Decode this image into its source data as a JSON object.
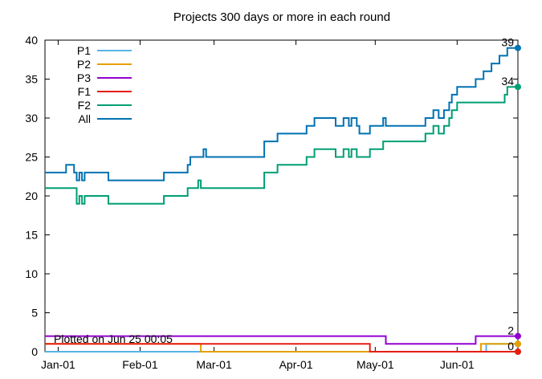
{
  "chart_data": {
    "type": "line",
    "title": "Projects 300 days or more in each round",
    "xlabel": "",
    "ylabel": "",
    "ylim": [
      0,
      40
    ],
    "yticks": [
      0,
      5,
      10,
      15,
      20,
      25,
      30,
      35,
      40
    ],
    "xlim": [
      "2021-12-27",
      "2022-06-24"
    ],
    "xticks": [
      {
        "date": "2022-01-01",
        "label": "Jan-01"
      },
      {
        "date": "2022-02-01",
        "label": "Feb-01"
      },
      {
        "date": "2022-03-01",
        "label": "Mar-01"
      },
      {
        "date": "2022-04-01",
        "label": "Apr-01"
      },
      {
        "date": "2022-05-01",
        "label": "May-01"
      },
      {
        "date": "2022-06-01",
        "label": "Jun-01"
      }
    ],
    "grid": false,
    "legend_position": "top-left",
    "note": "Plotted on Jun 25 00:05",
    "series": [
      {
        "name": "P1",
        "color": "#56b4e9",
        "points": [
          [
            "2021-12-27",
            0
          ],
          [
            "2022-06-12",
            0
          ],
          [
            "2022-06-12",
            1
          ],
          [
            "2022-06-24",
            1
          ]
        ],
        "end_value": 1,
        "end_label": ""
      },
      {
        "name": "P2",
        "color": "#e69f00",
        "points": [
          [
            "2021-12-27",
            1
          ],
          [
            "2022-02-24",
            1
          ],
          [
            "2022-02-24",
            0
          ],
          [
            "2022-06-10",
            0
          ],
          [
            "2022-06-10",
            1
          ],
          [
            "2022-06-24",
            1
          ]
        ],
        "end_value": 1,
        "end_label": ""
      },
      {
        "name": "P3",
        "color": "#9400d3",
        "points": [
          [
            "2021-12-27",
            2
          ],
          [
            "2022-05-05",
            2
          ],
          [
            "2022-05-05",
            1
          ],
          [
            "2022-06-08",
            1
          ],
          [
            "2022-06-08",
            2
          ],
          [
            "2022-06-24",
            2
          ]
        ],
        "end_value": 2,
        "end_label": "2"
      },
      {
        "name": "F1",
        "color": "#e51e10",
        "points": [
          [
            "2021-12-27",
            1
          ],
          [
            "2022-04-29",
            1
          ],
          [
            "2022-04-29",
            0
          ],
          [
            "2022-06-24",
            0
          ]
        ],
        "end_value": 0,
        "end_label": "0"
      },
      {
        "name": "F2",
        "color": "#009e73",
        "points": [
          [
            "2021-12-27",
            21
          ],
          [
            "2022-01-08",
            21
          ],
          [
            "2022-01-08",
            19
          ],
          [
            "2022-01-09",
            19
          ],
          [
            "2022-01-09",
            20
          ],
          [
            "2022-01-10",
            20
          ],
          [
            "2022-01-10",
            19
          ],
          [
            "2022-01-11",
            19
          ],
          [
            "2022-01-11",
            20
          ],
          [
            "2022-01-20",
            20
          ],
          [
            "2022-01-20",
            19
          ],
          [
            "2022-02-10",
            19
          ],
          [
            "2022-02-10",
            20
          ],
          [
            "2022-02-19",
            20
          ],
          [
            "2022-02-19",
            21
          ],
          [
            "2022-02-23",
            21
          ],
          [
            "2022-02-23",
            22
          ],
          [
            "2022-02-24",
            22
          ],
          [
            "2022-02-24",
            21
          ],
          [
            "2022-03-20",
            21
          ],
          [
            "2022-03-20",
            23
          ],
          [
            "2022-03-25",
            23
          ],
          [
            "2022-03-25",
            24
          ],
          [
            "2022-04-05",
            24
          ],
          [
            "2022-04-05",
            25
          ],
          [
            "2022-04-08",
            25
          ],
          [
            "2022-04-08",
            26
          ],
          [
            "2022-04-16",
            26
          ],
          [
            "2022-04-16",
            25
          ],
          [
            "2022-04-19",
            25
          ],
          [
            "2022-04-19",
            26
          ],
          [
            "2022-04-21",
            26
          ],
          [
            "2022-04-21",
            25
          ],
          [
            "2022-04-22",
            25
          ],
          [
            "2022-04-22",
            26
          ],
          [
            "2022-04-24",
            26
          ],
          [
            "2022-04-24",
            25
          ],
          [
            "2022-04-29",
            25
          ],
          [
            "2022-04-29",
            26
          ],
          [
            "2022-05-04",
            26
          ],
          [
            "2022-05-04",
            27
          ],
          [
            "2022-05-20",
            27
          ],
          [
            "2022-05-20",
            28
          ],
          [
            "2022-05-23",
            28
          ],
          [
            "2022-05-23",
            29
          ],
          [
            "2022-05-25",
            29
          ],
          [
            "2022-05-25",
            28
          ],
          [
            "2022-05-27",
            28
          ],
          [
            "2022-05-27",
            29
          ],
          [
            "2022-05-29",
            29
          ],
          [
            "2022-05-29",
            30
          ],
          [
            "2022-05-30",
            30
          ],
          [
            "2022-05-30",
            31
          ],
          [
            "2022-06-01",
            31
          ],
          [
            "2022-06-01",
            32
          ],
          [
            "2022-06-19",
            32
          ],
          [
            "2022-06-19",
            33
          ],
          [
            "2022-06-20",
            33
          ],
          [
            "2022-06-20",
            34
          ],
          [
            "2022-06-24",
            34
          ]
        ],
        "end_value": 34,
        "end_label": "34"
      },
      {
        "name": "All",
        "color": "#0072b2",
        "points": [
          [
            "2021-12-27",
            23
          ],
          [
            "2022-01-04",
            23
          ],
          [
            "2022-01-04",
            24
          ],
          [
            "2022-01-07",
            24
          ],
          [
            "2022-01-07",
            23
          ],
          [
            "2022-01-08",
            23
          ],
          [
            "2022-01-08",
            22
          ],
          [
            "2022-01-09",
            22
          ],
          [
            "2022-01-09",
            23
          ],
          [
            "2022-01-10",
            23
          ],
          [
            "2022-01-10",
            22
          ],
          [
            "2022-01-11",
            22
          ],
          [
            "2022-01-11",
            23
          ],
          [
            "2022-01-20",
            23
          ],
          [
            "2022-01-20",
            22
          ],
          [
            "2022-02-10",
            22
          ],
          [
            "2022-02-10",
            23
          ],
          [
            "2022-02-19",
            23
          ],
          [
            "2022-02-19",
            24
          ],
          [
            "2022-02-20",
            24
          ],
          [
            "2022-02-20",
            25
          ],
          [
            "2022-02-25",
            25
          ],
          [
            "2022-02-25",
            26
          ],
          [
            "2022-02-26",
            26
          ],
          [
            "2022-02-26",
            25
          ],
          [
            "2022-03-20",
            25
          ],
          [
            "2022-03-20",
            27
          ],
          [
            "2022-03-25",
            27
          ],
          [
            "2022-03-25",
            28
          ],
          [
            "2022-04-05",
            28
          ],
          [
            "2022-04-05",
            29
          ],
          [
            "2022-04-08",
            29
          ],
          [
            "2022-04-08",
            30
          ],
          [
            "2022-04-16",
            30
          ],
          [
            "2022-04-16",
            29
          ],
          [
            "2022-04-19",
            29
          ],
          [
            "2022-04-19",
            30
          ],
          [
            "2022-04-21",
            30
          ],
          [
            "2022-04-21",
            29
          ],
          [
            "2022-04-22",
            29
          ],
          [
            "2022-04-22",
            30
          ],
          [
            "2022-04-24",
            30
          ],
          [
            "2022-04-24",
            29
          ],
          [
            "2022-04-25",
            29
          ],
          [
            "2022-04-25",
            28
          ],
          [
            "2022-04-29",
            28
          ],
          [
            "2022-04-29",
            29
          ],
          [
            "2022-05-04",
            29
          ],
          [
            "2022-05-04",
            30
          ],
          [
            "2022-05-05",
            30
          ],
          [
            "2022-05-05",
            29
          ],
          [
            "2022-05-20",
            29
          ],
          [
            "2022-05-20",
            30
          ],
          [
            "2022-05-23",
            30
          ],
          [
            "2022-05-23",
            31
          ],
          [
            "2022-05-25",
            31
          ],
          [
            "2022-05-25",
            30
          ],
          [
            "2022-05-27",
            30
          ],
          [
            "2022-05-27",
            31
          ],
          [
            "2022-05-29",
            31
          ],
          [
            "2022-05-29",
            32
          ],
          [
            "2022-05-30",
            32
          ],
          [
            "2022-05-30",
            33
          ],
          [
            "2022-06-01",
            33
          ],
          [
            "2022-06-01",
            34
          ],
          [
            "2022-06-08",
            34
          ],
          [
            "2022-06-08",
            35
          ],
          [
            "2022-06-11",
            35
          ],
          [
            "2022-06-11",
            36
          ],
          [
            "2022-06-14",
            36
          ],
          [
            "2022-06-14",
            37
          ],
          [
            "2022-06-17",
            37
          ],
          [
            "2022-06-17",
            38
          ],
          [
            "2022-06-20",
            38
          ],
          [
            "2022-06-20",
            39
          ],
          [
            "2022-06-24",
            39
          ]
        ],
        "end_value": 39,
        "end_label": "39"
      }
    ]
  }
}
